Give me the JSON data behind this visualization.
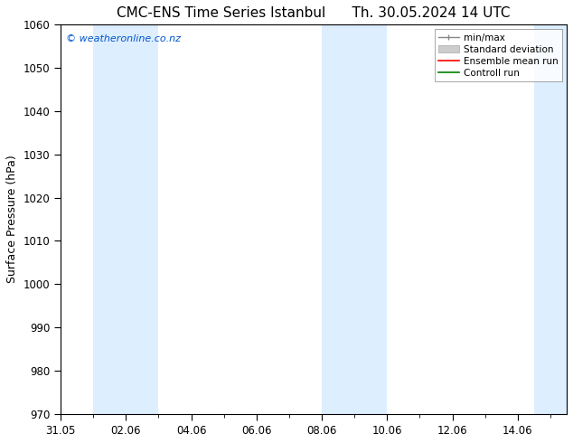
{
  "title_left": "CMC-ENS Time Series Istanbul",
  "title_right": "Th. 30.05.2024 14 UTC",
  "ylabel": "Surface Pressure (hPa)",
  "ylim": [
    970,
    1060
  ],
  "yticks": [
    970,
    980,
    990,
    1000,
    1010,
    1020,
    1030,
    1040,
    1050,
    1060
  ],
  "xlim": [
    0,
    15.5
  ],
  "xtick_labels": [
    "31.05",
    "02.06",
    "04.06",
    "06.06",
    "08.06",
    "10.06",
    "12.06",
    "14.06"
  ],
  "xtick_positions": [
    0,
    2,
    4,
    6,
    8,
    10,
    12,
    14
  ],
  "shaded_bands": [
    {
      "x_start": 1,
      "x_end": 3
    },
    {
      "x_start": 8,
      "x_end": 10
    },
    {
      "x_start": 14.5,
      "x_end": 15.5
    }
  ],
  "band_color": "#ddeeff",
  "watermark_text": "© weatheronline.co.nz",
  "watermark_color": "#0055cc",
  "bg_color": "#ffffff",
  "plot_bg_color": "#ffffff",
  "spine_color": "#000000",
  "title_fontsize": 11,
  "label_fontsize": 9,
  "tick_fontsize": 8.5,
  "legend_fontsize": 7.5
}
